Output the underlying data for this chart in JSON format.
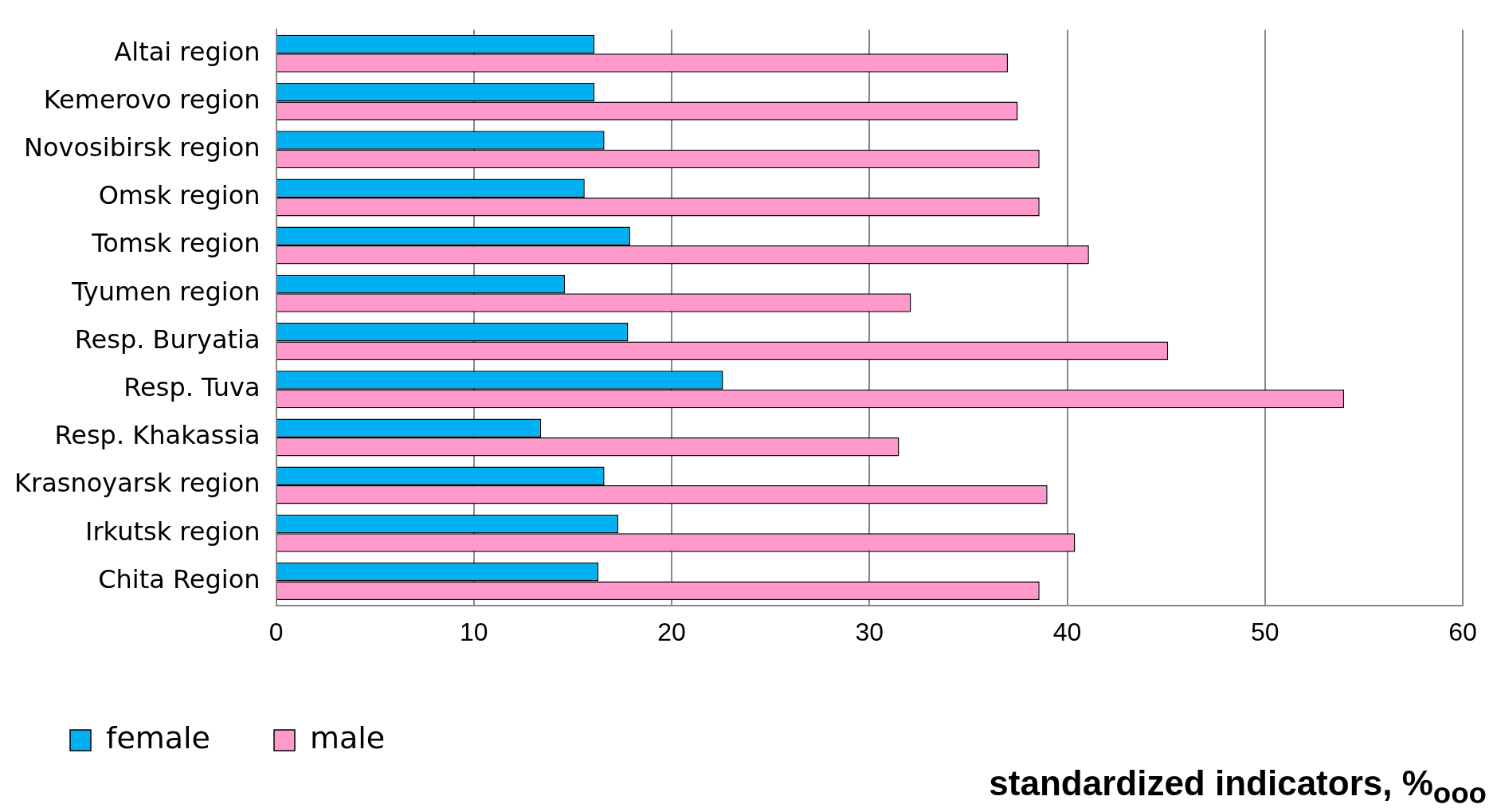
{
  "chart_data": {
    "type": "bar",
    "orientation": "horizontal",
    "xlabel": "standardized indicators, %$_{ooo}$",
    "categories": [
      "Altai region",
      "Kemerovo region",
      "Novosibirsk region",
      "Omsk region",
      "Tomsk region",
      "Tyumen region",
      "Resp. Buryatia",
      "Resp. Tuva",
      "Resp. Khakassia",
      "Krasnoyarsk region",
      "Irkutsk region",
      "Chita Region"
    ],
    "series": [
      {
        "name": "female",
        "color": "#00b0f0",
        "values": [
          16.1,
          16.1,
          16.6,
          15.6,
          17.9,
          14.6,
          17.8,
          22.6,
          13.4,
          16.6,
          17.3,
          16.3
        ]
      },
      {
        "name": "male",
        "color": "#ff99cc",
        "values": [
          37.0,
          37.5,
          38.6,
          38.6,
          41.1,
          32.1,
          45.1,
          54.0,
          31.5,
          39.0,
          40.4,
          38.6
        ]
      }
    ],
    "xlim": [
      0,
      60
    ],
    "xticks": [
      0,
      10,
      20,
      30,
      40,
      50,
      60
    ],
    "grid": "x",
    "legend": "bottom left"
  }
}
